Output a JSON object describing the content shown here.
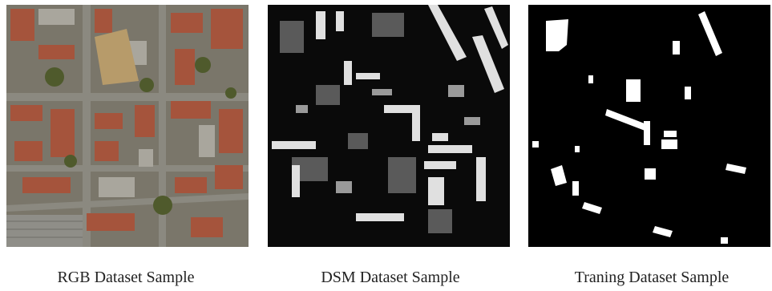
{
  "figure": {
    "panels": [
      {
        "id": "rgb",
        "caption": "RGB Dataset Sample"
      },
      {
        "id": "dsm",
        "caption": "DSM Dataset Sample"
      },
      {
        "id": "train",
        "caption": "Traning Dataset Sample"
      }
    ]
  },
  "colors": {
    "background": "#ffffff",
    "mask_background": "#000000",
    "mask_foreground": "#ffffff",
    "dsm_background": "#0a0a0a",
    "roof_terracotta": "#a5543c",
    "roof_gray": "#8d8c86",
    "vegetation": "#4f5a2c",
    "road": "#6b6a63",
    "field": "#b79b6a"
  }
}
